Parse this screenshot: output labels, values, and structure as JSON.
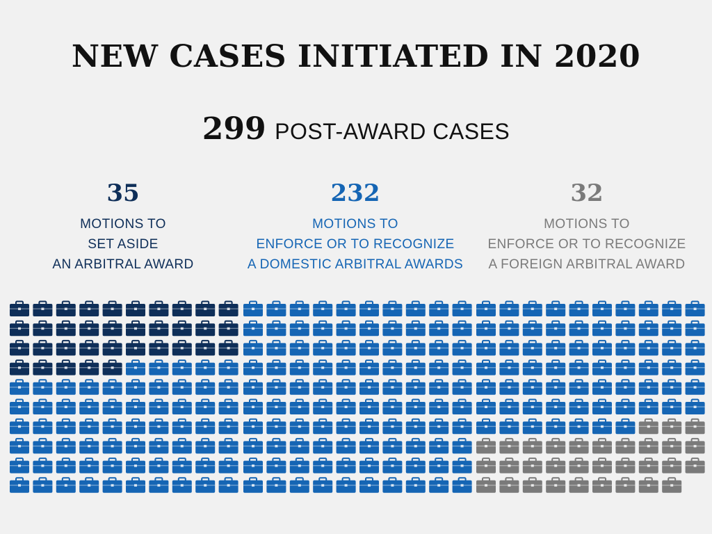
{
  "title": "NEW CASES INITIATED IN 2020",
  "total": {
    "value": "299",
    "label": "POST-AWARD CASES"
  },
  "colors": {
    "background": "#f1f1f1",
    "set_aside": "#0e2e58",
    "domestic": "#1565b4",
    "foreign": "#7a7a7a",
    "text_dark": "#111111"
  },
  "chart_data": {
    "type": "pictogram",
    "icon": "briefcase-icon",
    "title": "NEW CASES INITIATED IN 2020",
    "total": 299,
    "total_label": "POST-AWARD CASES",
    "categories": [
      {
        "name": "set-aside",
        "value": 35,
        "label_lines": [
          "MOTIONS TO",
          "SET ASIDE",
          "AN ARBITRAL AWARD"
        ],
        "color": "#0e2e58"
      },
      {
        "name": "domestic",
        "value": 232,
        "label_lines": [
          "MOTIONS TO",
          "ENFORCE OR TO RECOGNIZE",
          "A DOMESTIC ARBITRAL AWARDS"
        ],
        "color": "#1565b4"
      },
      {
        "name": "foreign",
        "value": 32,
        "label_lines": [
          "MOTIONS TO",
          "ENFORCE OR TO RECOGNIZE",
          "A FOREIGN ARBITRAL AWARD"
        ],
        "color": "#7a7a7a"
      }
    ],
    "grid": {
      "blocks": 3,
      "columns_per_block": 10,
      "rows": 10
    }
  }
}
